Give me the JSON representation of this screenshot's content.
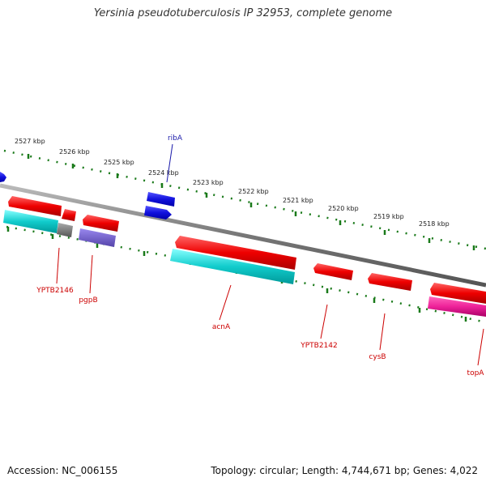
{
  "title": "Yersinia pseudotuberculosis IP 32953, complete genome",
  "footer": {
    "accession": "Accession: NC_006155",
    "summary": "Topology: circular; Length: 4,744,671 bp; Genes: 4,022"
  },
  "colors": {
    "backbone": "#888888",
    "ruler": "#1a7a1a",
    "label_red": "#cc0000",
    "label_blue": "#1a1aaa"
  },
  "ruler_labels": [
    "2527 kbp",
    "2526 kbp",
    "2525 kbp",
    "2524 kbp",
    "2523 kbp",
    "2522 kbp",
    "2521 kbp",
    "2520 kbp",
    "2519 kbp",
    "2518 kbp"
  ],
  "gene_labels": {
    "ribA": "ribA",
    "YPTB2146": "YPTB2146",
    "pgpB": "pgpB",
    "acnA": "acnA",
    "YPTB2142": "YPTB2142",
    "cysB": "cysB",
    "topA": "topA"
  },
  "feature_colors": {
    "red": "#ee1111",
    "blue": "#1111dd",
    "cyan": "#11cccc",
    "grey": "#777777",
    "purple": "#7766cc",
    "magenta": "#ee2299"
  }
}
